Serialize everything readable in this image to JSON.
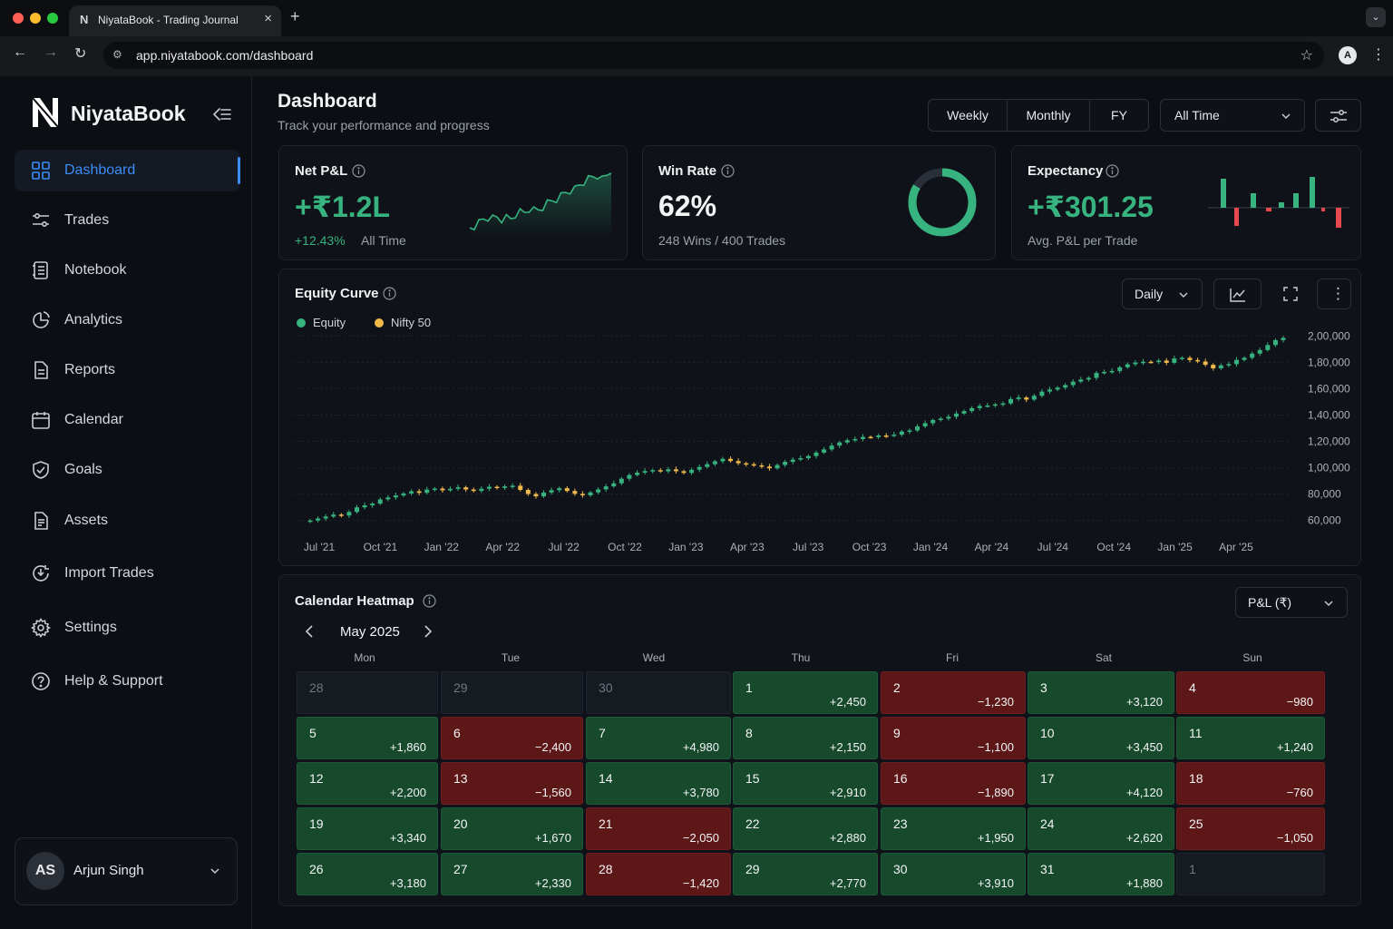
{
  "browser": {
    "tab_title": "NiyataBook - Trading Journal",
    "tab_favicon": "N",
    "url": "app.niyatabook.com/dashboard",
    "profile_initial": "A"
  },
  "brand": {
    "name": "NiyataBook"
  },
  "sidebar": {
    "items": [
      {
        "label": "Dashboard",
        "icon": "grid-icon",
        "active": true
      },
      {
        "label": "Trades",
        "icon": "sliders-icon"
      },
      {
        "label": "Notebook",
        "icon": "notebook-icon"
      },
      {
        "label": "Analytics",
        "icon": "analytics-icon"
      },
      {
        "label": "Reports",
        "icon": "report-icon"
      },
      {
        "label": "Calendar",
        "icon": "calendar-icon"
      },
      {
        "label": "Goals",
        "icon": "shield-check-icon"
      },
      {
        "label": "Assets",
        "icon": "assets-icon"
      },
      {
        "label": "Import Trades",
        "icon": "import-icon"
      },
      {
        "label": "Settings",
        "icon": "gear-icon"
      },
      {
        "label": "Help & Support",
        "icon": "help-icon"
      }
    ],
    "user": {
      "initials": "AS",
      "name": "Arjun Singh"
    }
  },
  "header": {
    "title": "Dashboard",
    "subtitle": "Track your performance and progress",
    "periods": [
      "Weekly",
      "Monthly",
      "FY"
    ],
    "range_select": "All Time"
  },
  "kpis": {
    "net_pnl": {
      "title": "Net P&L",
      "value": "+₹1.2L",
      "change": "+12.43%",
      "period": "All Time"
    },
    "win_rate": {
      "title": "Win Rate",
      "value": "62%",
      "detail": "248 Wins / 400 Trades",
      "rate": 0.62
    },
    "expectancy": {
      "title": "Expectancy",
      "value": "+₹301.25",
      "detail": "Avg. P&L per Trade"
    }
  },
  "equity_curve": {
    "title": "Equity Curve",
    "interval_select": "Daily",
    "legend": [
      {
        "name": "Equity",
        "color": "#36b37e"
      },
      {
        "name": "Nifty 50",
        "color": "#f0b94a"
      }
    ]
  },
  "chart_data": {
    "type": "candlestick",
    "title": "Equity Curve",
    "xlabel": "",
    "ylabel": "",
    "ylim": [
      55000,
      205000
    ],
    "yticks": [
      "2,00,000",
      "1,80,000",
      "1,60,000",
      "1,40,000",
      "1,20,000",
      "1,00,000",
      "80,000",
      "60,000"
    ],
    "ytick_values": [
      200000,
      180000,
      160000,
      140000,
      120000,
      100000,
      80000,
      60000
    ],
    "xticks": [
      "Jul '21",
      "Oct '21",
      "Jan '22",
      "Apr '22",
      "Jul '22",
      "Oct '22",
      "Jan '23",
      "Apr '23",
      "Jul '23",
      "Oct '23",
      "Jan '24",
      "Apr '24",
      "Jul '24",
      "Oct '24",
      "Jan '25",
      "Apr '25"
    ],
    "series_close": [
      60000,
      61500,
      63000,
      64500,
      63800,
      66500,
      70000,
      71500,
      72800,
      76000,
      77500,
      79000,
      80500,
      82200,
      81000,
      83500,
      84200,
      82900,
      84000,
      85200,
      83500,
      82400,
      84100,
      85600,
      84700,
      85900,
      86400,
      83200,
      80100,
      78300,
      81200,
      83000,
      84500,
      82400,
      80200,
      79100,
      81300,
      83600,
      85900,
      88200,
      91700,
      94500,
      96300,
      97500,
      98200,
      97300,
      98800,
      97400,
      96100,
      98500,
      100600,
      102700,
      104900,
      106800,
      105100,
      103400,
      102700,
      101800,
      100900,
      99600,
      102100,
      104500,
      106200,
      107300,
      108900,
      111500,
      113900,
      116800,
      119200,
      120900,
      121800,
      123400,
      123200,
      124500,
      124300,
      125100,
      127500,
      128300,
      131400,
      133800,
      136200,
      137300,
      138700,
      141100,
      143000,
      145200,
      146900,
      147200,
      148100,
      148800,
      152100,
      153300,
      151700,
      154600,
      157800,
      159300,
      160800,
      162700,
      165300,
      166900,
      168200,
      171900,
      172700,
      173400,
      176200,
      178500,
      179800,
      180400,
      180200,
      181300,
      179600,
      182900,
      183400,
      181700,
      180600,
      178100,
      175400,
      177700,
      178600,
      181800,
      183400,
      186600,
      189300,
      193100,
      196800,
      198500
    ]
  },
  "heatmap": {
    "title": "Calendar Heatmap",
    "metric_select": "P&L (₹)",
    "month": "May 2025",
    "weekdays": [
      "Mon",
      "Tue",
      "Wed",
      "Thu",
      "Fri",
      "Sat",
      "Sun"
    ],
    "weeks": [
      [
        {
          "d": "28",
          "v": "",
          "s": "muted"
        },
        {
          "d": "29",
          "v": "",
          "s": "muted"
        },
        {
          "d": "30",
          "v": "",
          "s": "muted"
        },
        {
          "d": "1",
          "v": "+2,450",
          "s": "pos"
        },
        {
          "d": "2",
          "v": "−1,230",
          "s": "neg"
        },
        {
          "d": "3",
          "v": "+3,120",
          "s": "pos"
        },
        {
          "d": "4",
          "v": "−980",
          "s": "neg"
        }
      ],
      [
        {
          "d": "5",
          "v": "+1,860",
          "s": "pos"
        },
        {
          "d": "6",
          "v": "−2,400",
          "s": "neg"
        },
        {
          "d": "7",
          "v": "+4,980",
          "s": "pos"
        },
        {
          "d": "8",
          "v": "+2,150",
          "s": "pos"
        },
        {
          "d": "9",
          "v": "−1,100",
          "s": "neg"
        },
        {
          "d": "10",
          "v": "+3,450",
          "s": "pos"
        },
        {
          "d": "11",
          "v": "+1,240",
          "s": "pos"
        }
      ],
      [
        {
          "d": "12",
          "v": "+2,200",
          "s": "pos"
        },
        {
          "d": "13",
          "v": "−1,560",
          "s": "neg"
        },
        {
          "d": "14",
          "v": "+3,780",
          "s": "pos"
        },
        {
          "d": "15",
          "v": "+2,910",
          "s": "pos"
        },
        {
          "d": "16",
          "v": "−1,890",
          "s": "neg"
        },
        {
          "d": "17",
          "v": "+4,120",
          "s": "pos"
        },
        {
          "d": "18",
          "v": "−760",
          "s": "neg"
        }
      ],
      [
        {
          "d": "19",
          "v": "+3,340",
          "s": "pos"
        },
        {
          "d": "20",
          "v": "+1,670",
          "s": "pos"
        },
        {
          "d": "21",
          "v": "−2,050",
          "s": "neg"
        },
        {
          "d": "22",
          "v": "+2,880",
          "s": "pos"
        },
        {
          "d": "23",
          "v": "+1,950",
          "s": "pos"
        },
        {
          "d": "24",
          "v": "+2,620",
          "s": "pos"
        },
        {
          "d": "25",
          "v": "−1,050",
          "s": "neg"
        }
      ],
      [
        {
          "d": "26",
          "v": "+3,180",
          "s": "pos"
        },
        {
          "d": "27",
          "v": "+2,330",
          "s": "pos"
        },
        {
          "d": "28",
          "v": "−1,420",
          "s": "neg"
        },
        {
          "d": "29",
          "v": "+2,770",
          "s": "pos"
        },
        {
          "d": "30",
          "v": "+3,910",
          "s": "pos"
        },
        {
          "d": "31",
          "v": "+1,880",
          "s": "pos"
        },
        {
          "d": "1",
          "v": "",
          "s": "muted"
        }
      ]
    ]
  },
  "colors": {
    "accent": "#3b8cf5",
    "positive": "#36b37e",
    "negative": "#e5484d",
    "benchmark": "#f0b94a"
  }
}
